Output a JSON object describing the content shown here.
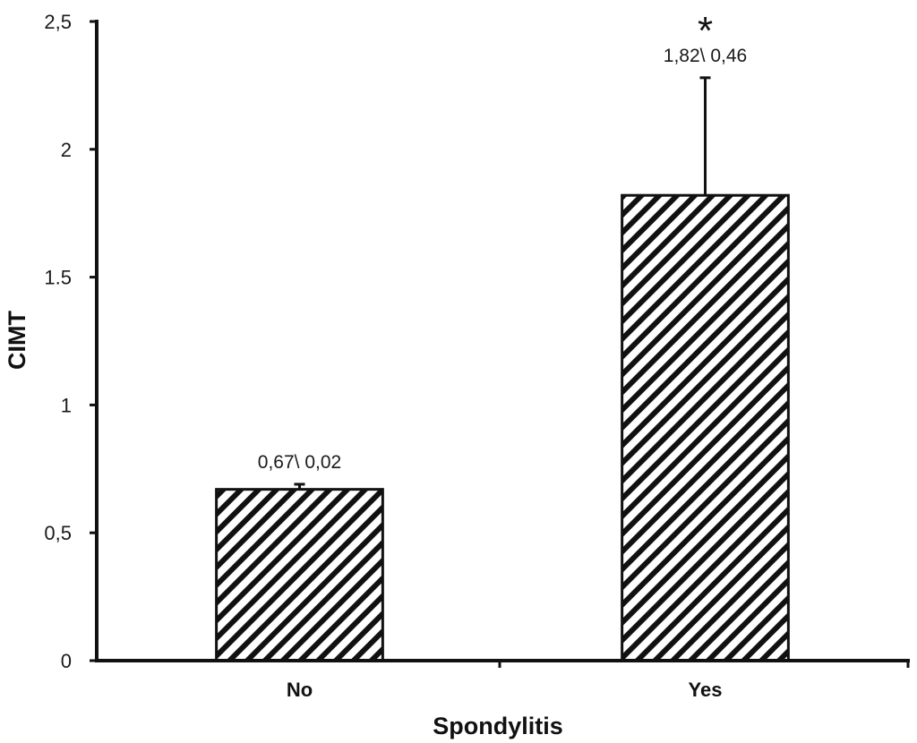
{
  "chart_data": {
    "type": "bar",
    "categories": [
      "No",
      "Yes"
    ],
    "values": [
      0.67,
      1.82
    ],
    "error": [
      0.02,
      0.46
    ],
    "data_labels": [
      "0,67\\ 0,02",
      "1,82\\ 0,46"
    ],
    "annotations": [
      {
        "category": "Yes",
        "text": "*"
      }
    ],
    "xlabel": "Spondylitis",
    "ylabel": "CIMT",
    "ylim": [
      0,
      2.5
    ],
    "yticks": [
      0,
      0.5,
      1,
      1.5,
      2,
      2.5
    ],
    "ytick_labels": [
      "0",
      "0,5",
      "1",
      "1.5",
      "2",
      "2,5"
    ],
    "bar_fill": "diagonal-hatch",
    "colors": {
      "bar_edge": "#111111",
      "hatch": "#111111",
      "background": "#ffffff"
    },
    "grid": false,
    "legend": "none"
  }
}
